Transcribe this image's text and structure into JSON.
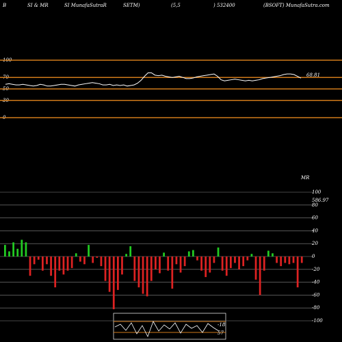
{
  "header": {
    "texts": [
      "B",
      "SI & MR",
      "SI MunafaSutraR",
      "SETM)",
      "(5,5",
      ") 532400",
      "(BSOFT) MunafaSutra.com"
    ]
  },
  "chart_data": [
    {
      "type": "line",
      "color": "#ffffff",
      "level_color": "#d07a1a",
      "ylim": [
        0,
        100
      ],
      "yticks": [
        0,
        30,
        50,
        70,
        100
      ],
      "annotation": "68.81",
      "values": [
        58,
        59,
        58,
        57,
        57,
        58,
        57,
        56,
        55,
        56,
        58,
        57,
        55,
        55,
        56,
        57,
        58,
        58,
        57,
        56,
        55,
        57,
        58,
        59,
        60,
        61,
        60,
        59,
        57,
        57,
        58,
        56,
        57,
        56,
        57,
        55,
        56,
        57,
        60,
        65,
        72,
        78,
        78,
        74,
        73,
        74,
        72,
        71,
        70,
        71,
        72,
        70,
        68,
        68,
        69,
        71,
        72,
        73,
        74,
        75,
        76,
        72,
        66,
        64,
        65,
        66,
        67,
        66,
        65,
        64,
        65,
        64,
        65,
        66,
        68,
        69,
        70,
        71,
        72,
        73,
        75,
        76,
        76,
        75,
        72,
        68.81
      ]
    },
    {
      "type": "bar",
      "label": "MR",
      "annotation": "586.97",
      "pos_color": "#22cc22",
      "neg_color": "#dd2222",
      "grid_color": "#888888",
      "ylim": [
        -100,
        100
      ],
      "yticks": [
        -100,
        -80,
        -60,
        -40,
        -20,
        0,
        20,
        40,
        60,
        80,
        100
      ],
      "values": [
        18,
        8,
        22,
        12,
        26,
        22,
        -30,
        -12,
        -5,
        -22,
        -12,
        -30,
        -48,
        -22,
        -28,
        -22,
        -18,
        5,
        -8,
        -12,
        18,
        -10,
        -2,
        -15,
        -38,
        -55,
        -82,
        -52,
        -28,
        4,
        16,
        -38,
        -48,
        -58,
        -62,
        -38,
        -20,
        -26,
        6,
        -22,
        -50,
        -12,
        -25,
        -15,
        8,
        10,
        -6,
        -22,
        -32,
        -25,
        -10,
        14,
        -22,
        -30,
        -18,
        -10,
        -20,
        -15,
        -6,
        4,
        -36,
        -60,
        -22,
        9,
        5,
        -10,
        -15,
        -10,
        -12,
        -10,
        -48,
        -10
      ]
    },
    {
      "type": "mini",
      "labels": [
        "-18",
        "57"
      ]
    }
  ]
}
